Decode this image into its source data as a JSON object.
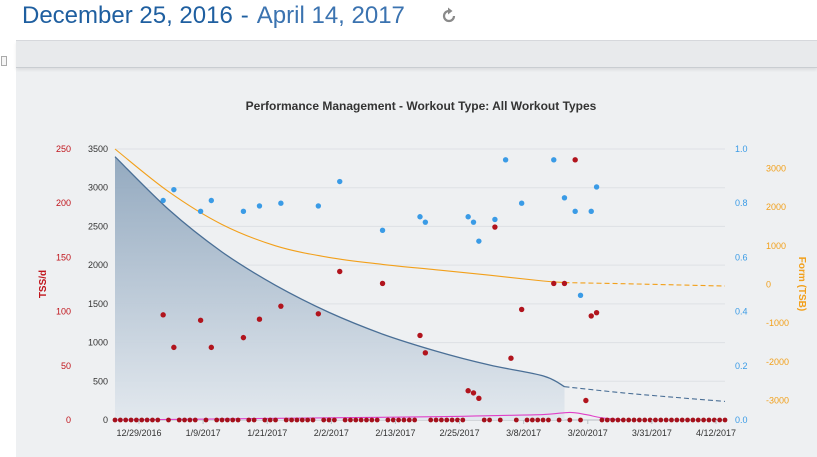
{
  "header": {
    "start_date": "December 25, 2016",
    "separator": "-",
    "end_date": "April 14, 2017",
    "refresh_icon": "refresh-icon"
  },
  "colors": {
    "header_text": "#1f5fa0",
    "tss_axis": "#c0141b",
    "ctl_fill": "#8fa6bd",
    "ctl_line": "#4a6f96",
    "ifactor_axis": "#3a9be6",
    "tsb_axis": "#f2a01b",
    "pink_line": "#e040c8"
  },
  "chart_data": {
    "type": "scatter",
    "title": "Performance Management - Workout Type: All Workout Types",
    "x_ticks": [
      "12/29/2016",
      "1/9/2017",
      "1/21/2017",
      "2/2/2017",
      "2/13/2017",
      "2/25/2017",
      "3/8/2017",
      "3/20/2017",
      "3/31/2017",
      "4/12/2017"
    ],
    "axes": {
      "tss_per_day": {
        "label": "TSS/d",
        "ticks": [
          "0",
          "50",
          "100",
          "150",
          "200",
          "250"
        ],
        "range": [
          0,
          250
        ]
      },
      "tss": {
        "label": "",
        "ticks": [
          "0",
          "500",
          "1000",
          "1500",
          "2000",
          "2500",
          "3000",
          "3500"
        ],
        "range": [
          0,
          3500
        ]
      },
      "intensity": {
        "label": "",
        "ticks": [
          "0.0",
          "0.2",
          "0.4",
          "0.6",
          "0.8",
          "1.0"
        ],
        "range": [
          0,
          1.0
        ]
      },
      "form": {
        "label": "Form (TSB)",
        "ticks": [
          "-3000",
          "-2000",
          "-1000",
          "0",
          "1000",
          "2000",
          "3000"
        ],
        "range": [
          -3500,
          3500
        ]
      }
    },
    "series": [
      {
        "kind": "area",
        "axis": "tss",
        "x_day": [
          0,
          10,
          20,
          30,
          40,
          50,
          60,
          70,
          80,
          84
        ],
        "values": [
          3400,
          2720,
          2170,
          1740,
          1390,
          1110,
          890,
          710,
          570,
          430
        ]
      },
      {
        "kind": "dashed-line",
        "axis": "tss",
        "x_day": [
          84,
          95,
          105,
          114
        ],
        "values": [
          430,
          350,
          290,
          240
        ]
      },
      {
        "kind": "line",
        "axis": "form",
        "x_day": [
          0,
          10,
          20,
          30,
          40,
          50,
          60,
          70,
          80,
          84
        ],
        "values": [
          3500,
          2400,
          1550,
          1000,
          700,
          520,
          380,
          240,
          90,
          50
        ]
      },
      {
        "kind": "dashed-line",
        "axis": "form",
        "x_day": [
          84,
          95,
          105,
          114
        ],
        "values": [
          50,
          20,
          -10,
          -40
        ]
      },
      {
        "kind": "dots",
        "axis": "tss_per_day",
        "points": [
          [
            9,
            97
          ],
          [
            11,
            67
          ],
          [
            16,
            92
          ],
          [
            18,
            67
          ],
          [
            24,
            76
          ],
          [
            27,
            93
          ],
          [
            31,
            105
          ],
          [
            38,
            98
          ],
          [
            42,
            137
          ],
          [
            50,
            126
          ],
          [
            57,
            78
          ],
          [
            58,
            62
          ],
          [
            66,
            27
          ],
          [
            67,
            25
          ],
          [
            68,
            20
          ],
          [
            71,
            178
          ],
          [
            74,
            57
          ],
          [
            76,
            102
          ],
          [
            82,
            126
          ],
          [
            84,
            126
          ],
          [
            86,
            240
          ],
          [
            88,
            18
          ],
          [
            89,
            96
          ],
          [
            90,
            99
          ]
        ]
      },
      {
        "kind": "dots",
        "axis": "intensity",
        "points": [
          [
            9,
            0.81
          ],
          [
            11,
            0.85
          ],
          [
            16,
            0.77
          ],
          [
            18,
            0.81
          ],
          [
            24,
            0.77
          ],
          [
            27,
            0.79
          ],
          [
            31,
            0.8
          ],
          [
            38,
            0.79
          ],
          [
            42,
            0.88
          ],
          [
            50,
            0.7
          ],
          [
            57,
            0.75
          ],
          [
            58,
            0.73
          ],
          [
            66,
            0.75
          ],
          [
            67,
            0.73
          ],
          [
            68,
            0.66
          ],
          [
            71,
            0.74
          ],
          [
            73,
            0.96
          ],
          [
            76,
            0.8
          ],
          [
            82,
            0.96
          ],
          [
            84,
            0.82
          ],
          [
            86,
            0.77
          ],
          [
            87,
            0.46
          ],
          [
            89,
            0.77
          ],
          [
            90,
            0.86
          ]
        ]
      },
      {
        "kind": "baseline-dots",
        "axis": "tss_per_day",
        "x_days": [
          0,
          1,
          2,
          3,
          4,
          5,
          6,
          7,
          8,
          10,
          12,
          13,
          14,
          15,
          17,
          19,
          20,
          21,
          22,
          23,
          25,
          26,
          28,
          29,
          30,
          32,
          33,
          34,
          35,
          36,
          37,
          39,
          40,
          41,
          43,
          44,
          45,
          46,
          47,
          48,
          49,
          51,
          52,
          53,
          54,
          55,
          56,
          59,
          60,
          61,
          62,
          63,
          64,
          65,
          69,
          70,
          72,
          75,
          77,
          78,
          79,
          80,
          81,
          83,
          85,
          87,
          91,
          92,
          93,
          94,
          95,
          96,
          97,
          98,
          99,
          100,
          101,
          102,
          103,
          104,
          105,
          106,
          107,
          108,
          109,
          110,
          111,
          112,
          113,
          114
        ]
      },
      {
        "kind": "line",
        "axis": "tss_per_day",
        "x_day": [
          0,
          20,
          40,
          60,
          70,
          80,
          85,
          88,
          91,
          95
        ],
        "values": [
          0,
          1,
          2,
          3,
          4,
          5,
          7,
          5,
          2,
          0
        ]
      }
    ]
  }
}
